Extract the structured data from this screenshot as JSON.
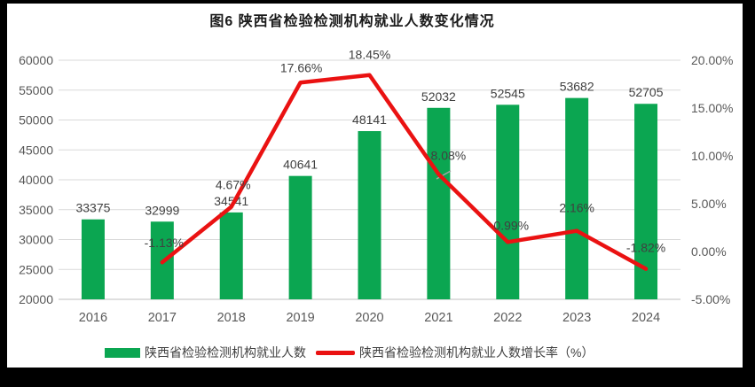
{
  "title": "图6 陕西省检验检测机构就业人数变化情况",
  "colors": {
    "bar": "#0ba651",
    "line": "#ea1212",
    "grid": "#d9d9d9",
    "axis_line": "#bfbfbf",
    "tick_text": "#595959",
    "label_text": "#404040",
    "leader_line": "#a6a6a6",
    "frame": "#000000",
    "background": "#ffffff"
  },
  "legend": [
    {
      "label": "陕西省检验检测机构就业人数",
      "swatch": "bar"
    },
    {
      "label": "陕西省检验检测机构就业人数增长率（%）",
      "swatch": "line"
    }
  ],
  "chart_data": {
    "type": "bar+line",
    "title": "图6 陕西省检验检测机构就业人数变化情况",
    "categories": [
      "2016",
      "2017",
      "2018",
      "2019",
      "2020",
      "2021",
      "2022",
      "2023",
      "2024"
    ],
    "series": [
      {
        "name": "陕西省检验检测机构就业人数",
        "type": "bar",
        "axis": "left",
        "values": [
          33375,
          32999,
          34541,
          40641,
          48141,
          52032,
          52545,
          53682,
          52705
        ],
        "data_labels": [
          "33375",
          "32999",
          "34541",
          "40641",
          "48141",
          "52032",
          "52545",
          "53682",
          "52705"
        ]
      },
      {
        "name": "陕西省检验检测机构就业人数增长率（%）",
        "type": "line",
        "axis": "right",
        "values": [
          null,
          -1.13,
          4.67,
          17.66,
          18.45,
          8.08,
          0.99,
          2.16,
          -1.82
        ],
        "data_labels": [
          null,
          "-1.13%",
          "4.67%",
          "17.66%",
          "18.45%",
          "8.08%",
          "0.99%",
          "2.16%",
          "-1.82%"
        ]
      }
    ],
    "left_axis": {
      "min": 20000,
      "max": 60000,
      "step": 5000,
      "tick_labels": [
        "60000",
        "55000",
        "50000",
        "45000",
        "40000",
        "35000",
        "30000",
        "25000",
        "20000"
      ]
    },
    "right_axis": {
      "min": -5,
      "max": 20,
      "step": 5,
      "tick_labels": [
        "20.00%",
        "15.00%",
        "10.00%",
        "5.00%",
        "0.00%",
        "-5.00%"
      ]
    },
    "grid": true,
    "legend_position": "bottom"
  }
}
